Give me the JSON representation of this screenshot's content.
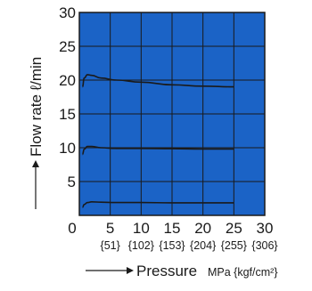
{
  "chart_data": {
    "type": "line",
    "xlabel": "Pressure",
    "xunit": "MPa {kgf/cm²}",
    "ylabel": "Flow rate ℓ/min",
    "xlim": [
      0,
      30
    ],
    "ylim": [
      0,
      30
    ],
    "grid": true,
    "x_ticks": [
      {
        "value": 0,
        "label": "0",
        "sub": ""
      },
      {
        "value": 5,
        "label": "5",
        "sub": "{51}"
      },
      {
        "value": 10,
        "label": "10",
        "sub": "{102}"
      },
      {
        "value": 15,
        "label": "15",
        "sub": "{153}"
      },
      {
        "value": 20,
        "label": "20",
        "sub": "{204}"
      },
      {
        "value": 25,
        "label": "25",
        "sub": "{255}"
      },
      {
        "value": 30,
        "label": "30",
        "sub": "{306}"
      }
    ],
    "y_ticks": [
      {
        "value": 5,
        "label": "5"
      },
      {
        "value": 10,
        "label": "10"
      },
      {
        "value": 15,
        "label": "15"
      },
      {
        "value": 20,
        "label": "20"
      },
      {
        "value": 25,
        "label": "25"
      },
      {
        "value": 30,
        "label": "30"
      }
    ],
    "series": [
      {
        "x": [
          0.5,
          0.8,
          1.3,
          2.0,
          3.5,
          6,
          10,
          15,
          20,
          25
        ],
        "y": [
          19.0,
          20.3,
          20.8,
          20.7,
          20.3,
          20.0,
          19.7,
          19.3,
          19.1,
          19.0
        ]
      },
      {
        "x": [
          0.5,
          0.8,
          1.3,
          2.0,
          3.5,
          6,
          10,
          15,
          20,
          25
        ],
        "y": [
          9.0,
          9.8,
          10.2,
          10.2,
          10.0,
          9.9,
          9.9,
          9.85,
          9.8,
          9.8
        ]
      },
      {
        "x": [
          0.5,
          0.8,
          1.3,
          2.0,
          3.5,
          6,
          10,
          15,
          20,
          25
        ],
        "y": [
          1.2,
          1.6,
          1.9,
          2.0,
          1.95,
          1.9,
          1.9,
          1.85,
          1.85,
          1.85
        ]
      }
    ],
    "colors": {
      "plot_background": "#1b63c6",
      "grid": "#1a1a1a",
      "line": "#1a1a1a",
      "text": "#1a1a1a"
    }
  }
}
